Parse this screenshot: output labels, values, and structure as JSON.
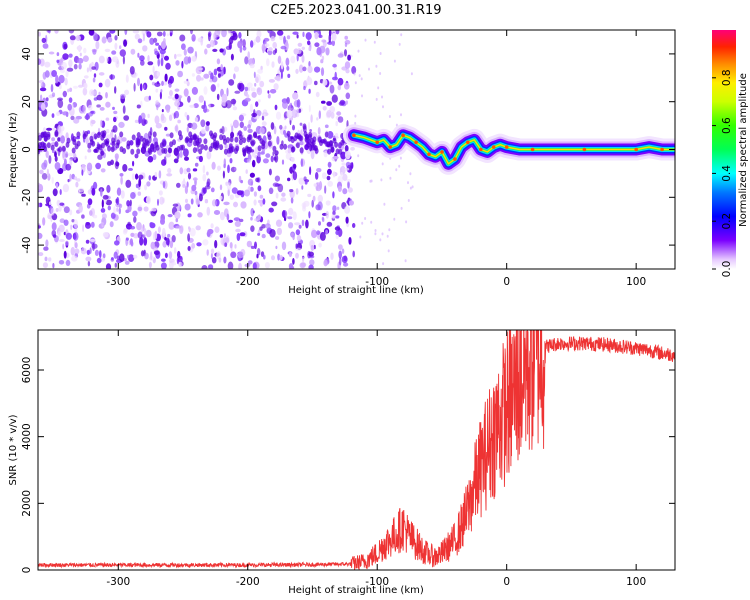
{
  "title": "C2E5.2023.041.00.31.R19",
  "chart_data": [
    {
      "type": "heatmap",
      "xlabel": "Height of straight line (km)",
      "ylabel": "Frequency (Hz)",
      "xlim": [
        -362,
        130
      ],
      "ylim": [
        -50,
        50
      ],
      "xticks": [
        -300,
        -200,
        -100,
        0,
        100
      ],
      "yticks": [
        -40,
        -20,
        0,
        20,
        40
      ],
      "noise_region_x": [
        -362,
        -118
      ],
      "signal_track": {
        "x": [
          -118,
          -110,
          -100,
          -95,
          -90,
          -85,
          -80,
          -75,
          -70,
          -65,
          -60,
          -55,
          -50,
          -45,
          -40,
          -35,
          -30,
          -25,
          -20,
          -15,
          -10,
          -5,
          0,
          10,
          20,
          40,
          60,
          80,
          100,
          110,
          120,
          130
        ],
        "y": [
          6,
          5,
          3,
          4,
          1,
          2,
          6,
          5,
          3,
          1,
          -2,
          -3,
          -1,
          -6,
          -4,
          1,
          3,
          4,
          0,
          -1,
          1,
          2,
          1,
          0,
          0,
          0,
          0,
          0,
          0,
          1,
          0,
          0
        ]
      },
      "colorbar": {
        "label": "Normalized spectral amplitude",
        "range": [
          0.0,
          1.0
        ],
        "ticks": [
          0.0,
          0.2,
          0.4,
          0.6,
          0.8
        ]
      }
    },
    {
      "type": "line",
      "color": "#ee3333",
      "xlabel": "Height of straight line (km)",
      "ylabel": "SNR (10 * v/v)",
      "xlim": [
        -362,
        130
      ],
      "ylim": [
        0,
        7200
      ],
      "xticks": [
        -300,
        -200,
        -100,
        0,
        100
      ],
      "yticks": [
        0,
        2000,
        4000,
        6000
      ],
      "series": [
        {
          "x": [
            -362,
            -300,
            -250,
            -200,
            -150,
            -120,
            -110,
            -100,
            -95,
            -90,
            -85,
            -80,
            -75,
            -70,
            -65,
            -60,
            -55,
            -50,
            -45,
            -40,
            -35,
            -30,
            -25,
            -20,
            -15,
            -10,
            -5,
            0,
            5,
            10,
            15,
            20,
            25,
            30,
            35,
            40,
            50,
            60,
            70,
            80,
            90,
            100,
            110,
            120,
            130
          ],
          "y": [
            150,
            150,
            150,
            150,
            160,
            180,
            250,
            500,
            750,
            900,
            1100,
            1300,
            1000,
            800,
            600,
            450,
            400,
            500,
            700,
            900,
            1300,
            1800,
            2500,
            3100,
            3600,
            4100,
            4500,
            4900,
            5300,
            5700,
            6100,
            6400,
            6600,
            6700,
            6750,
            6800,
            6800,
            6800,
            6780,
            6750,
            6700,
            6650,
            6600,
            6500,
            6450
          ]
        }
      ]
    }
  ]
}
